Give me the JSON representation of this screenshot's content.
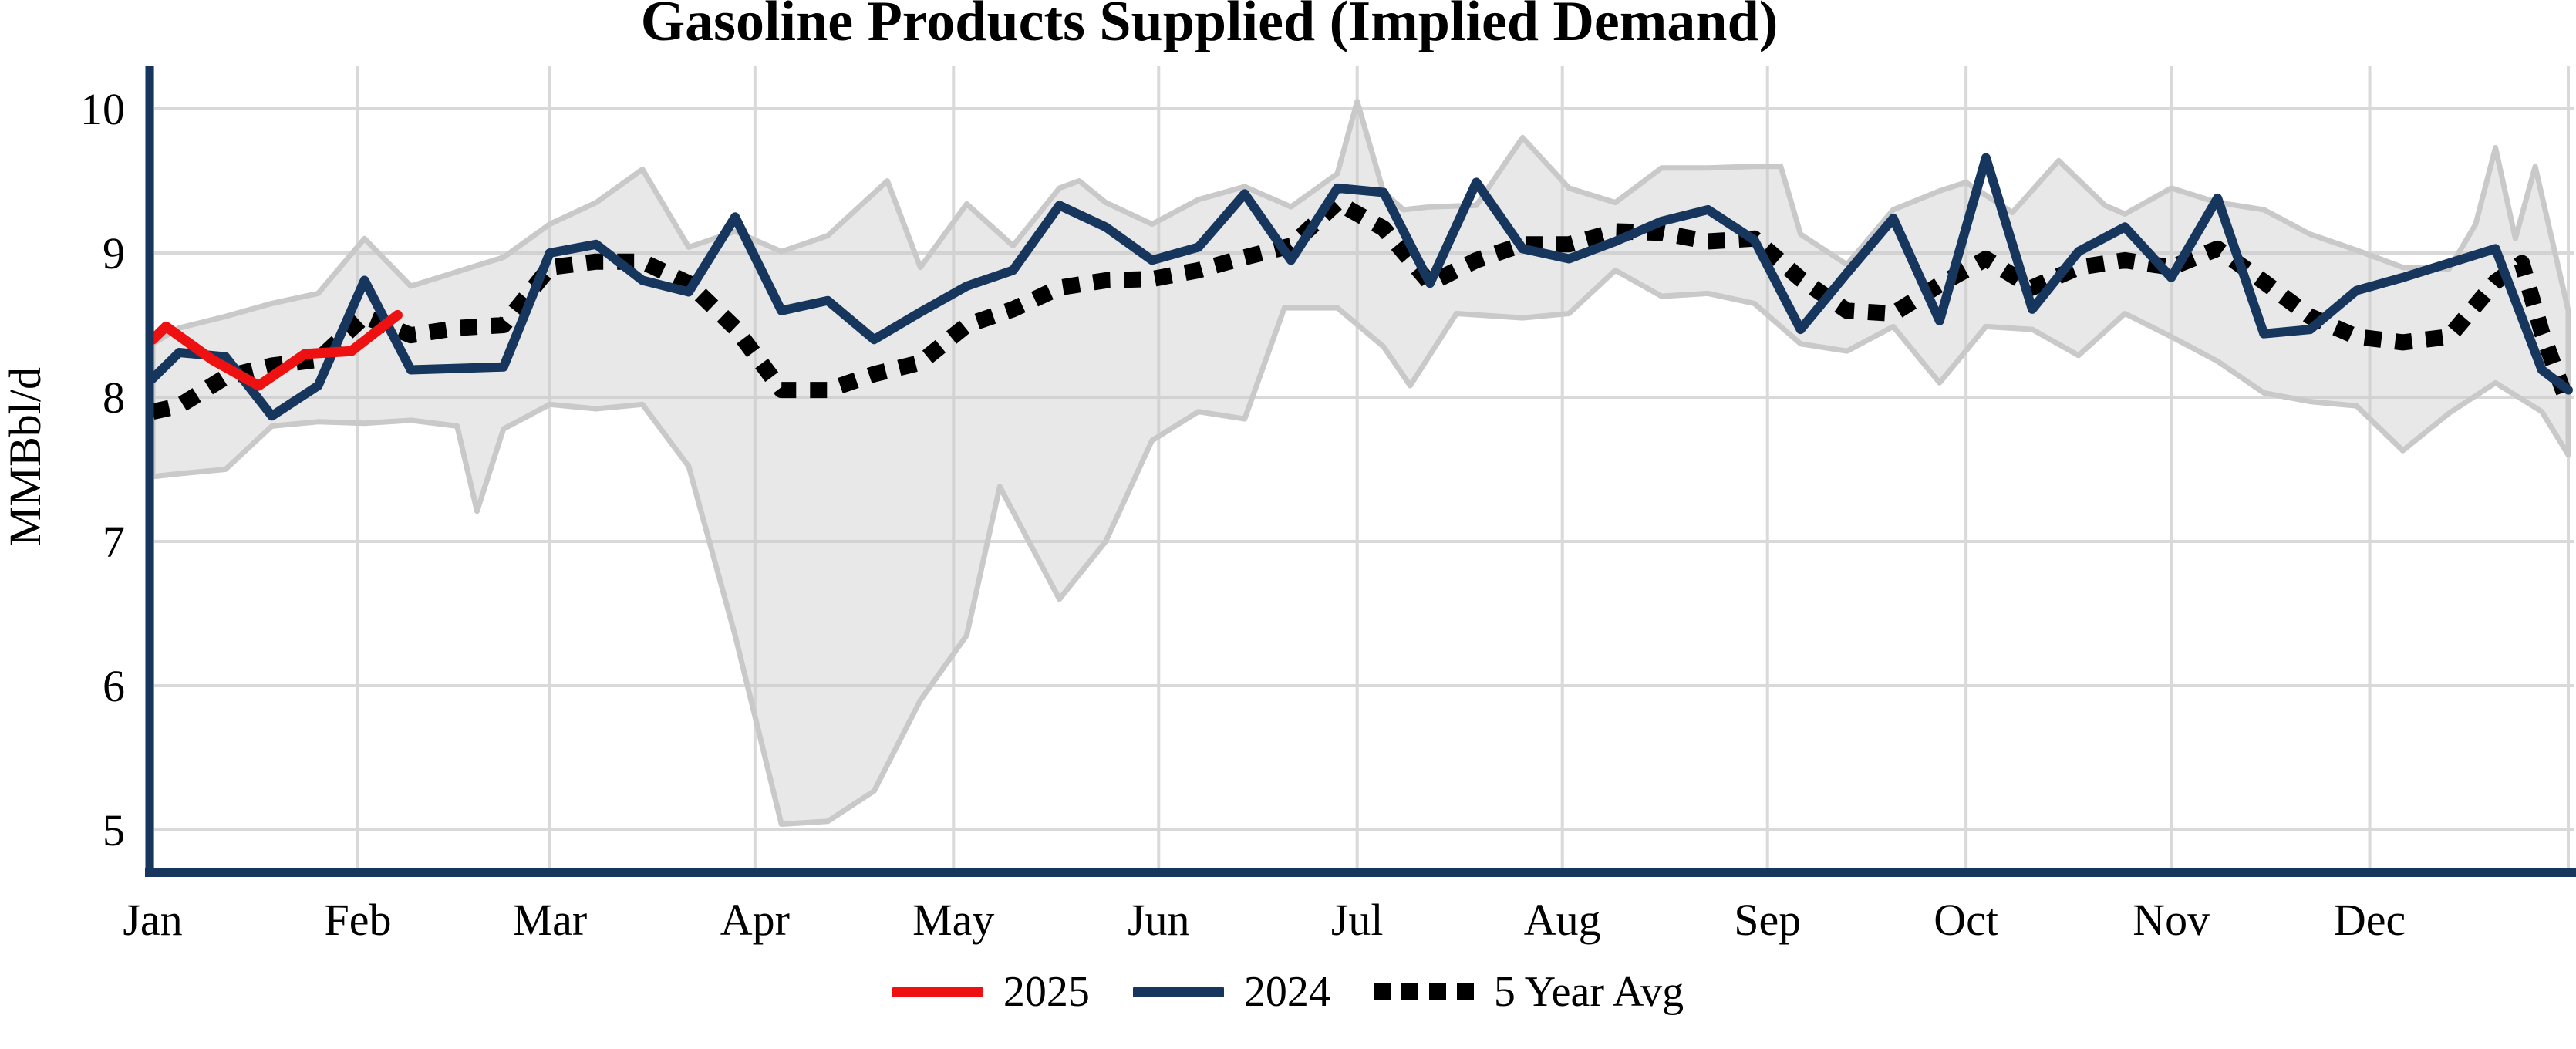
{
  "title": "Gasoline Products Supplied (Implied Demand)",
  "y_axis": {
    "label": "MMBbl/d",
    "ticks": [
      "10",
      "9",
      "8",
      "7",
      "6",
      "5"
    ],
    "tick_values": [
      10,
      9,
      8,
      7,
      6,
      5
    ],
    "min": 5,
    "max": 10
  },
  "x_axis": {
    "months": [
      "Jan",
      "Feb",
      "Mar",
      "Apr",
      "May",
      "Jun",
      "Jul",
      "Aug",
      "Sep",
      "Oct",
      "Nov",
      "Dec"
    ],
    "month_start_days": [
      1,
      32,
      61,
      92,
      122,
      153,
      183,
      214,
      245,
      275,
      306,
      336
    ]
  },
  "legend": [
    {
      "label": "2025",
      "color": "#ee1111",
      "style": "solid"
    },
    {
      "label": "2024",
      "color": "#17365d",
      "style": "solid"
    },
    {
      "label": "5 Year Avg",
      "color": "#000000",
      "style": "dotted"
    }
  ],
  "colors": {
    "line_2025": "#ee1111",
    "line_2024": "#17365d",
    "line_avg": "#000000",
    "band_fill": "rgba(201,201,201,0.42)",
    "band_stroke": "#c9c9c9",
    "gridline": "#d9d9d9",
    "axis": "#17365d",
    "text": "#000000"
  },
  "chart_data": {
    "type": "line",
    "title": "Gasoline Products Supplied (Implied Demand)",
    "xlabel": "",
    "ylabel": "MMBbl/d",
    "ylim": [
      5,
      10
    ],
    "x_unit": "day_of_year",
    "grid": true,
    "legend_position": "bottom",
    "series": [
      {
        "name": "2025",
        "color": "#ee1111",
        "style": "solid",
        "points": [
          [
            1,
            8.4
          ],
          [
            3,
            8.49
          ],
          [
            10,
            8.26
          ],
          [
            17,
            8.08
          ],
          [
            24,
            8.3
          ],
          [
            31,
            8.32
          ],
          [
            38,
            8.57
          ]
        ]
      },
      {
        "name": "2024",
        "color": "#17365d",
        "style": "solid",
        "points": [
          [
            1,
            8.13
          ],
          [
            5,
            8.31
          ],
          [
            12,
            8.28
          ],
          [
            19,
            7.87
          ],
          [
            26,
            8.08
          ],
          [
            33,
            8.81
          ],
          [
            40,
            8.19
          ],
          [
            47,
            8.2
          ],
          [
            54,
            8.21
          ],
          [
            61,
            9.0
          ],
          [
            68,
            9.06
          ],
          [
            75,
            8.81
          ],
          [
            82,
            8.73
          ],
          [
            89,
            9.25
          ],
          [
            96,
            8.6
          ],
          [
            103,
            8.67
          ],
          [
            110,
            8.4
          ],
          [
            117,
            8.59
          ],
          [
            124,
            8.77
          ],
          [
            131,
            8.88
          ],
          [
            138,
            9.33
          ],
          [
            145,
            9.18
          ],
          [
            152,
            8.95
          ],
          [
            159,
            9.04
          ],
          [
            166,
            9.41
          ],
          [
            173,
            8.95
          ],
          [
            180,
            9.45
          ],
          [
            187,
            9.42
          ],
          [
            194,
            8.79
          ],
          [
            201,
            9.49
          ],
          [
            208,
            9.03
          ],
          [
            215,
            8.96
          ],
          [
            222,
            9.08
          ],
          [
            229,
            9.22
          ],
          [
            236,
            9.3
          ],
          [
            243,
            9.09
          ],
          [
            250,
            8.47
          ],
          [
            257,
            8.86
          ],
          [
            264,
            9.24
          ],
          [
            271,
            8.53
          ],
          [
            278,
            9.66
          ],
          [
            285,
            8.61
          ],
          [
            292,
            9.01
          ],
          [
            299,
            9.18
          ],
          [
            306,
            8.83
          ],
          [
            313,
            9.38
          ],
          [
            320,
            8.44
          ],
          [
            327,
            8.47
          ],
          [
            334,
            8.74
          ],
          [
            341,
            8.83
          ],
          [
            348,
            8.93
          ],
          [
            355,
            9.03
          ],
          [
            362,
            8.19
          ],
          [
            366,
            8.05
          ]
        ]
      },
      {
        "name": "5 Year Avg",
        "color": "#000000",
        "style": "dotted",
        "points": [
          [
            1,
            7.9
          ],
          [
            5,
            7.94
          ],
          [
            12,
            8.14
          ],
          [
            19,
            8.22
          ],
          [
            26,
            8.26
          ],
          [
            33,
            8.56
          ],
          [
            40,
            8.43
          ],
          [
            47,
            8.48
          ],
          [
            54,
            8.5
          ],
          [
            61,
            8.9
          ],
          [
            68,
            8.94
          ],
          [
            75,
            8.94
          ],
          [
            82,
            8.79
          ],
          [
            89,
            8.48
          ],
          [
            96,
            8.05
          ],
          [
            103,
            8.05
          ],
          [
            110,
            8.16
          ],
          [
            117,
            8.24
          ],
          [
            124,
            8.5
          ],
          [
            131,
            8.61
          ],
          [
            138,
            8.76
          ],
          [
            145,
            8.81
          ],
          [
            152,
            8.82
          ],
          [
            159,
            8.88
          ],
          [
            166,
            8.97
          ],
          [
            173,
            9.05
          ],
          [
            180,
            9.35
          ],
          [
            187,
            9.17
          ],
          [
            194,
            8.79
          ],
          [
            201,
            8.95
          ],
          [
            208,
            9.06
          ],
          [
            215,
            9.06
          ],
          [
            222,
            9.15
          ],
          [
            229,
            9.14
          ],
          [
            236,
            9.08
          ],
          [
            243,
            9.1
          ],
          [
            250,
            8.82
          ],
          [
            257,
            8.6
          ],
          [
            264,
            8.58
          ],
          [
            271,
            8.78
          ],
          [
            278,
            8.96
          ],
          [
            285,
            8.76
          ],
          [
            292,
            8.9
          ],
          [
            299,
            8.95
          ],
          [
            306,
            8.9
          ],
          [
            313,
            9.03
          ],
          [
            320,
            8.8
          ],
          [
            327,
            8.56
          ],
          [
            334,
            8.42
          ],
          [
            341,
            8.38
          ],
          [
            348,
            8.42
          ],
          [
            355,
            8.8
          ],
          [
            359,
            8.93
          ],
          [
            362,
            8.45
          ],
          [
            366,
            7.95
          ]
        ]
      }
    ],
    "band": {
      "description": "5-year min/max range (shaded)",
      "upper": [
        [
          1,
          8.37
        ],
        [
          5,
          8.48
        ],
        [
          12,
          8.56
        ],
        [
          19,
          8.65
        ],
        [
          26,
          8.72
        ],
        [
          33,
          9.1
        ],
        [
          40,
          8.77
        ],
        [
          47,
          8.87
        ],
        [
          54,
          8.97
        ],
        [
          61,
          9.2
        ],
        [
          68,
          9.35
        ],
        [
          75,
          9.58
        ],
        [
          82,
          9.04
        ],
        [
          89,
          9.15
        ],
        [
          96,
          9.01
        ],
        [
          103,
          9.12
        ],
        [
          112,
          9.5
        ],
        [
          117,
          8.9
        ],
        [
          124,
          9.34
        ],
        [
          131,
          9.05
        ],
        [
          138,
          9.45
        ],
        [
          141,
          9.5
        ],
        [
          145,
          9.35
        ],
        [
          152,
          9.2
        ],
        [
          159,
          9.37
        ],
        [
          166,
          9.46
        ],
        [
          173,
          9.32
        ],
        [
          180,
          9.55
        ],
        [
          183,
          10.05
        ],
        [
          187,
          9.42
        ],
        [
          190,
          9.3
        ],
        [
          194,
          9.32
        ],
        [
          201,
          9.33
        ],
        [
          208,
          9.8
        ],
        [
          215,
          9.45
        ],
        [
          222,
          9.35
        ],
        [
          229,
          9.59
        ],
        [
          236,
          9.59
        ],
        [
          243,
          9.6
        ],
        [
          247,
          9.6
        ],
        [
          250,
          9.13
        ],
        [
          257,
          8.92
        ],
        [
          264,
          9.3
        ],
        [
          271,
          9.43
        ],
        [
          275,
          9.49
        ],
        [
          282,
          9.28
        ],
        [
          289,
          9.64
        ],
        [
          296,
          9.33
        ],
        [
          299,
          9.27
        ],
        [
          306,
          9.45
        ],
        [
          313,
          9.35
        ],
        [
          320,
          9.3
        ],
        [
          327,
          9.13
        ],
        [
          334,
          9.02
        ],
        [
          341,
          8.9
        ],
        [
          348,
          8.89
        ],
        [
          352,
          9.2
        ],
        [
          355,
          9.73
        ],
        [
          358,
          9.1
        ],
        [
          361,
          9.6
        ],
        [
          366,
          8.6
        ]
      ],
      "lower": [
        [
          1,
          7.45
        ],
        [
          5,
          7.47
        ],
        [
          12,
          7.5
        ],
        [
          19,
          7.8
        ],
        [
          26,
          7.83
        ],
        [
          33,
          7.82
        ],
        [
          40,
          7.84
        ],
        [
          47,
          7.8
        ],
        [
          50,
          7.21
        ],
        [
          54,
          7.78
        ],
        [
          61,
          7.95
        ],
        [
          68,
          7.92
        ],
        [
          75,
          7.95
        ],
        [
          82,
          7.52
        ],
        [
          89,
          6.35
        ],
        [
          96,
          5.04
        ],
        [
          103,
          5.06
        ],
        [
          110,
          5.27
        ],
        [
          117,
          5.9
        ],
        [
          124,
          6.35
        ],
        [
          129,
          7.38
        ],
        [
          138,
          6.6
        ],
        [
          145,
          7.0
        ],
        [
          152,
          7.7
        ],
        [
          159,
          7.9
        ],
        [
          166,
          7.85
        ],
        [
          172,
          8.62
        ],
        [
          180,
          8.62
        ],
        [
          187,
          8.35
        ],
        [
          191,
          8.08
        ],
        [
          198,
          8.58
        ],
        [
          208,
          8.55
        ],
        [
          215,
          8.58
        ],
        [
          222,
          8.88
        ],
        [
          229,
          8.7
        ],
        [
          236,
          8.72
        ],
        [
          243,
          8.65
        ],
        [
          250,
          8.37
        ],
        [
          257,
          8.32
        ],
        [
          264,
          8.49
        ],
        [
          271,
          8.1
        ],
        [
          278,
          8.49
        ],
        [
          285,
          8.47
        ],
        [
          292,
          8.29
        ],
        [
          299,
          8.58
        ],
        [
          306,
          8.42
        ],
        [
          313,
          8.25
        ],
        [
          320,
          8.03
        ],
        [
          327,
          7.97
        ],
        [
          334,
          7.94
        ],
        [
          341,
          7.63
        ],
        [
          348,
          7.89
        ],
        [
          355,
          8.1
        ],
        [
          362,
          7.9
        ],
        [
          366,
          7.6
        ]
      ]
    }
  }
}
